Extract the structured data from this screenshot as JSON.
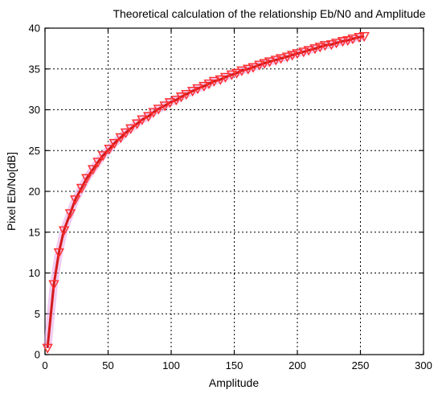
{
  "chart_data": {
    "type": "line",
    "title": "Theoretical calculation of the relationship Eb/N0 and Amplitude",
    "xlabel": "Amplitude",
    "ylabel": "Pixel Eb/No[dB]",
    "xlim": [
      0,
      300
    ],
    "ylim": [
      0,
      40
    ],
    "xticks": [
      0,
      50,
      100,
      150,
      200,
      250,
      300
    ],
    "yticks": [
      0,
      5,
      10,
      15,
      20,
      25,
      30,
      35,
      40
    ],
    "grid": true,
    "legend": "none",
    "colors": {
      "line": "#d41a1a",
      "marker": "#ff2d2d",
      "glow": "#e7a3e6"
    },
    "marker": "triangle-down",
    "series": [
      {
        "x": [
          2,
          7,
          11,
          15,
          20,
          24,
          29,
          33,
          38,
          42,
          46,
          51,
          55,
          60,
          64,
          68,
          73,
          77,
          82,
          86,
          90,
          95,
          99,
          104,
          108,
          112,
          117,
          121,
          126,
          130,
          134,
          139,
          143,
          148,
          152,
          156,
          161,
          165,
          170,
          174,
          178,
          183,
          187,
          192,
          196,
          200,
          205,
          209,
          214,
          218,
          222,
          227,
          231,
          236,
          240,
          244,
          249,
          253
        ],
        "y": [
          0.8,
          8.6,
          12.5,
          15.2,
          17.3,
          19.0,
          20.4,
          21.6,
          22.7,
          23.6,
          24.4,
          25.2,
          25.9,
          26.6,
          27.2,
          27.7,
          28.3,
          28.8,
          29.2,
          29.7,
          30.1,
          30.5,
          30.9,
          31.2,
          31.6,
          31.9,
          32.3,
          32.6,
          32.9,
          33.2,
          33.5,
          33.7,
          34.0,
          34.3,
          34.5,
          34.8,
          35.0,
          35.2,
          35.5,
          35.7,
          35.9,
          36.1,
          36.3,
          36.5,
          36.7,
          36.9,
          37.1,
          37.3,
          37.5,
          37.7,
          37.9,
          38.0,
          38.2,
          38.4,
          38.5,
          38.7,
          38.9,
          39.0
        ]
      }
    ]
  }
}
